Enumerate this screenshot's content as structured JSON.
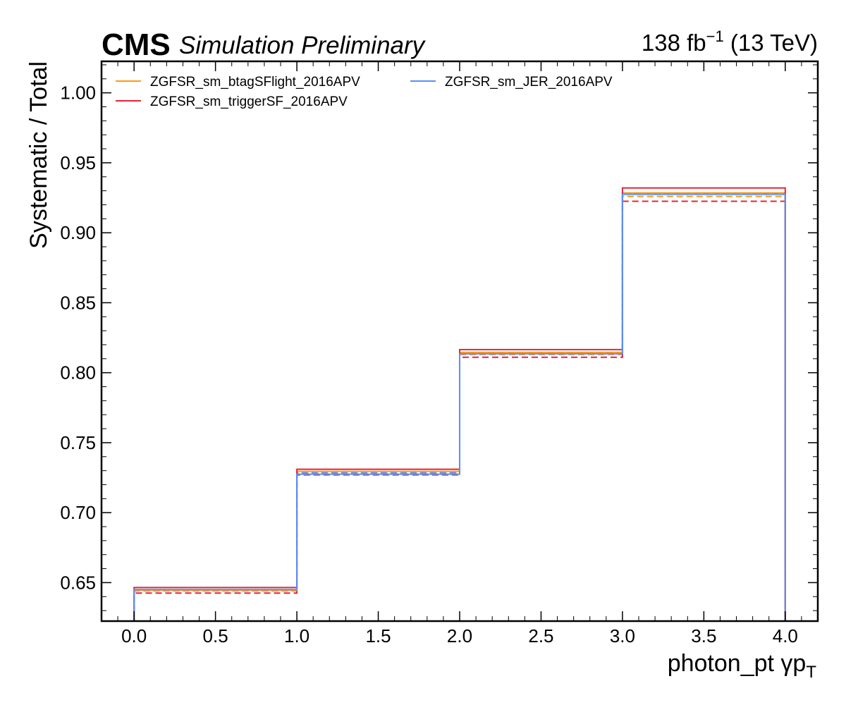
{
  "header": {
    "experiment": "CMS",
    "status": "Simulation Preliminary",
    "lumi_value": "138 fb",
    "lumi_exponent": "−1",
    "energy": "(13 TeV)"
  },
  "chart_data": {
    "type": "line",
    "drawstyle": "step",
    "xlabel": "photon_pt   γp",
    "xlabel_subscript": "T",
    "ylabel": "Systematic / Total",
    "xlim": [
      -0.2,
      4.2
    ],
    "ylim": [
      0.6225,
      1.0225
    ],
    "bin_edges": [
      0,
      1,
      2,
      3,
      4
    ],
    "xticks": [
      "0.0",
      "0.5",
      "1.0",
      "1.5",
      "2.0",
      "2.5",
      "3.0",
      "3.5",
      "4.0"
    ],
    "yticks": [
      "0.65",
      "0.70",
      "0.75",
      "0.80",
      "0.85",
      "0.90",
      "0.95",
      "1.00"
    ],
    "grid": false,
    "legend_position": "top-left",
    "legend_columns": 2,
    "series": [
      {
        "name": "ZGFSR_sm_btagSFlight_2016APV",
        "color": "#ff9a14",
        "variation": "up",
        "dashed": false,
        "values": [
          0.6445,
          0.7295,
          0.8145,
          0.9285
        ]
      },
      {
        "name": "ZGFSR_sm_btagSFlight_2016APV",
        "color": "#ff9a14",
        "variation": "down",
        "dashed": true,
        "values": [
          0.644,
          0.728,
          0.813,
          0.926
        ]
      },
      {
        "name": "ZGFSR_sm_triggerSF_2016APV",
        "color": "#e42536",
        "variation": "up",
        "dashed": false,
        "values": [
          0.6465,
          0.731,
          0.8165,
          0.932
        ]
      },
      {
        "name": "ZGFSR_sm_triggerSF_2016APV",
        "color": "#e42536",
        "variation": "down",
        "dashed": true,
        "values": [
          0.6425,
          0.727,
          0.811,
          0.9225
        ]
      },
      {
        "name": "ZGFSR_sm_JER_2016APV",
        "color": "#5790fc",
        "variation": "up",
        "dashed": false,
        "values": [
          0.645,
          0.7275,
          0.8135,
          0.9275
        ]
      },
      {
        "name": "ZGFSR_sm_JER_2016APV",
        "color": "#5790fc",
        "variation": "down",
        "dashed": true,
        "values": [
          0.6445,
          0.7285,
          0.814,
          0.928
        ]
      }
    ],
    "legend": [
      {
        "label": "ZGFSR_sm_btagSFlight_2016APV",
        "color": "#ff9a14"
      },
      {
        "label": "ZGFSR_sm_triggerSF_2016APV",
        "color": "#e42536"
      },
      {
        "label": "ZGFSR_sm_JER_2016APV",
        "color": "#5790fc"
      }
    ]
  }
}
